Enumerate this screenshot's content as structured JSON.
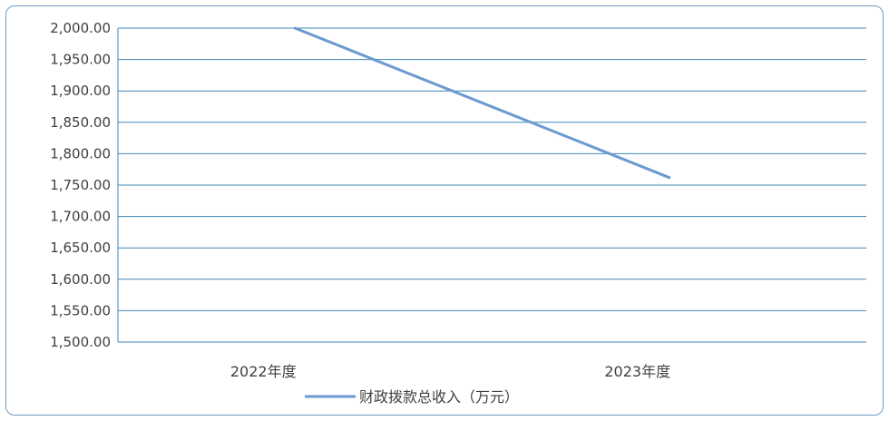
{
  "chart_data": {
    "type": "line",
    "categories": [
      "2022年度",
      "2023年度"
    ],
    "series": [
      {
        "name": "财政拨款总收入（万元）",
        "values": [
          2000.0,
          1762.0
        ],
        "color": "#6a9ad0"
      }
    ],
    "ylim": [
      1500,
      2000
    ],
    "yticks": [
      "1,500.00",
      "1,550.00",
      "1,600.00",
      "1,650.00",
      "1,700.00",
      "1,750.00",
      "1,800.00",
      "1,850.00",
      "1,900.00",
      "1,950.00",
      "2,000.00"
    ],
    "ytick_values": [
      1500,
      1550,
      1600,
      1650,
      1700,
      1750,
      1800,
      1850,
      1900,
      1950,
      2000
    ],
    "grid": true,
    "grid_color": "#3f86b8",
    "legend_position": "bottom"
  }
}
